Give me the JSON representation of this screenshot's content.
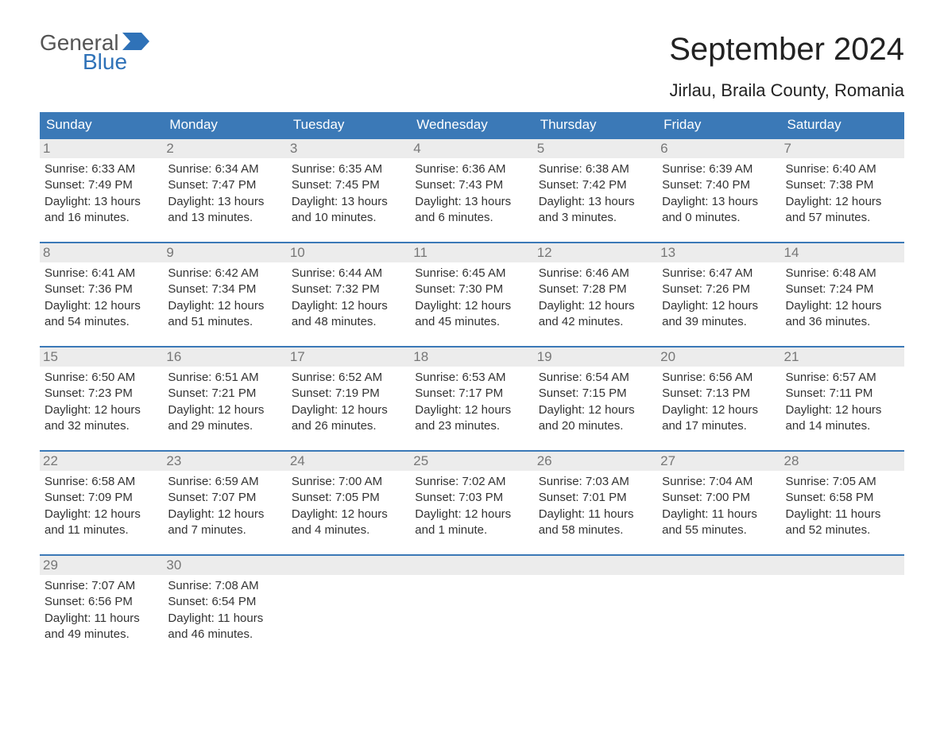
{
  "logo": {
    "word1": "General",
    "word2": "Blue"
  },
  "title": "September 2024",
  "location": "Jirlau, Braila County, Romania",
  "colors": {
    "header_bg": "#3b79b7",
    "header_text": "#ffffff",
    "week_border": "#3b79b7",
    "daynum_bg": "#ececec",
    "daynum_text": "#777777",
    "body_text": "#333333",
    "logo_blue": "#2f72b8",
    "logo_gray": "#555555",
    "page_bg": "#ffffff"
  },
  "weekdays": [
    "Sunday",
    "Monday",
    "Tuesday",
    "Wednesday",
    "Thursday",
    "Friday",
    "Saturday"
  ],
  "weeks": [
    [
      {
        "n": "1",
        "sunrise": "6:33 AM",
        "sunset": "7:49 PM",
        "daylight": "13 hours and 16 minutes."
      },
      {
        "n": "2",
        "sunrise": "6:34 AM",
        "sunset": "7:47 PM",
        "daylight": "13 hours and 13 minutes."
      },
      {
        "n": "3",
        "sunrise": "6:35 AM",
        "sunset": "7:45 PM",
        "daylight": "13 hours and 10 minutes."
      },
      {
        "n": "4",
        "sunrise": "6:36 AM",
        "sunset": "7:43 PM",
        "daylight": "13 hours and 6 minutes."
      },
      {
        "n": "5",
        "sunrise": "6:38 AM",
        "sunset": "7:42 PM",
        "daylight": "13 hours and 3 minutes."
      },
      {
        "n": "6",
        "sunrise": "6:39 AM",
        "sunset": "7:40 PM",
        "daylight": "13 hours and 0 minutes."
      },
      {
        "n": "7",
        "sunrise": "6:40 AM",
        "sunset": "7:38 PM",
        "daylight": "12 hours and 57 minutes."
      }
    ],
    [
      {
        "n": "8",
        "sunrise": "6:41 AM",
        "sunset": "7:36 PM",
        "daylight": "12 hours and 54 minutes."
      },
      {
        "n": "9",
        "sunrise": "6:42 AM",
        "sunset": "7:34 PM",
        "daylight": "12 hours and 51 minutes."
      },
      {
        "n": "10",
        "sunrise": "6:44 AM",
        "sunset": "7:32 PM",
        "daylight": "12 hours and 48 minutes."
      },
      {
        "n": "11",
        "sunrise": "6:45 AM",
        "sunset": "7:30 PM",
        "daylight": "12 hours and 45 minutes."
      },
      {
        "n": "12",
        "sunrise": "6:46 AM",
        "sunset": "7:28 PM",
        "daylight": "12 hours and 42 minutes."
      },
      {
        "n": "13",
        "sunrise": "6:47 AM",
        "sunset": "7:26 PM",
        "daylight": "12 hours and 39 minutes."
      },
      {
        "n": "14",
        "sunrise": "6:48 AM",
        "sunset": "7:24 PM",
        "daylight": "12 hours and 36 minutes."
      }
    ],
    [
      {
        "n": "15",
        "sunrise": "6:50 AM",
        "sunset": "7:23 PM",
        "daylight": "12 hours and 32 minutes."
      },
      {
        "n": "16",
        "sunrise": "6:51 AM",
        "sunset": "7:21 PM",
        "daylight": "12 hours and 29 minutes."
      },
      {
        "n": "17",
        "sunrise": "6:52 AM",
        "sunset": "7:19 PM",
        "daylight": "12 hours and 26 minutes."
      },
      {
        "n": "18",
        "sunrise": "6:53 AM",
        "sunset": "7:17 PM",
        "daylight": "12 hours and 23 minutes."
      },
      {
        "n": "19",
        "sunrise": "6:54 AM",
        "sunset": "7:15 PM",
        "daylight": "12 hours and 20 minutes."
      },
      {
        "n": "20",
        "sunrise": "6:56 AM",
        "sunset": "7:13 PM",
        "daylight": "12 hours and 17 minutes."
      },
      {
        "n": "21",
        "sunrise": "6:57 AM",
        "sunset": "7:11 PM",
        "daylight": "12 hours and 14 minutes."
      }
    ],
    [
      {
        "n": "22",
        "sunrise": "6:58 AM",
        "sunset": "7:09 PM",
        "daylight": "12 hours and 11 minutes."
      },
      {
        "n": "23",
        "sunrise": "6:59 AM",
        "sunset": "7:07 PM",
        "daylight": "12 hours and 7 minutes."
      },
      {
        "n": "24",
        "sunrise": "7:00 AM",
        "sunset": "7:05 PM",
        "daylight": "12 hours and 4 minutes."
      },
      {
        "n": "25",
        "sunrise": "7:02 AM",
        "sunset": "7:03 PM",
        "daylight": "12 hours and 1 minute."
      },
      {
        "n": "26",
        "sunrise": "7:03 AM",
        "sunset": "7:01 PM",
        "daylight": "11 hours and 58 minutes."
      },
      {
        "n": "27",
        "sunrise": "7:04 AM",
        "sunset": "7:00 PM",
        "daylight": "11 hours and 55 minutes."
      },
      {
        "n": "28",
        "sunrise": "7:05 AM",
        "sunset": "6:58 PM",
        "daylight": "11 hours and 52 minutes."
      }
    ],
    [
      {
        "n": "29",
        "sunrise": "7:07 AM",
        "sunset": "6:56 PM",
        "daylight": "11 hours and 49 minutes."
      },
      {
        "n": "30",
        "sunrise": "7:08 AM",
        "sunset": "6:54 PM",
        "daylight": "11 hours and 46 minutes."
      },
      {
        "empty": true
      },
      {
        "empty": true
      },
      {
        "empty": true
      },
      {
        "empty": true
      },
      {
        "empty": true
      }
    ]
  ],
  "labels": {
    "sunrise": "Sunrise:",
    "sunset": "Sunset:",
    "daylight": "Daylight:"
  }
}
